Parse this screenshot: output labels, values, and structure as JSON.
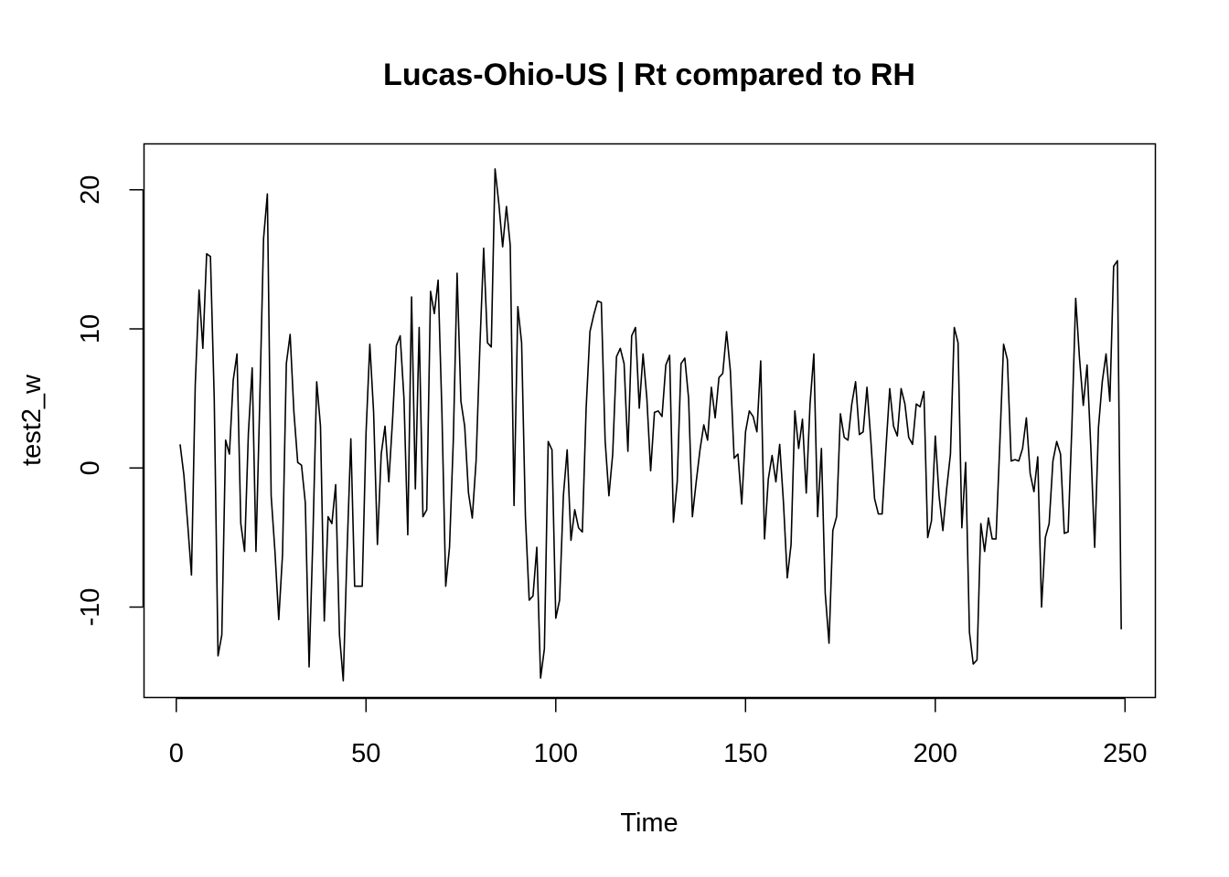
{
  "chart_data": {
    "type": "line",
    "title": "Lucas-Ohio-US | Rt compared to RH",
    "xlabel": "Time",
    "ylabel": "test2_w",
    "xlim": [
      -8.5,
      258
    ],
    "ylim": [
      -16.5,
      23.3
    ],
    "x_ticks": [
      0,
      50,
      100,
      150,
      200,
      250
    ],
    "x_tick_labels": [
      "0",
      "50",
      "100",
      "150",
      "200",
      "250"
    ],
    "y_ticks": [
      -10,
      0,
      10,
      20
    ],
    "y_tick_labels": [
      "-10",
      "0",
      "10",
      "20"
    ],
    "grid": false,
    "series": [
      {
        "color": "#000000",
        "x_start": 1,
        "x_step": 1,
        "values": [
          1.7,
          -0.5,
          -4.0,
          -7.7,
          6.0,
          12.8,
          8.6,
          15.4,
          15.2,
          5.0,
          -13.5,
          -12.0,
          2.0,
          1.0,
          6.3,
          8.2,
          -4.0,
          -6.0,
          2.5,
          7.2,
          -6.0,
          4.8,
          16.5,
          19.7,
          -2.0,
          -6.0,
          -10.9,
          -6.2,
          7.5,
          9.6,
          4.0,
          0.4,
          0.2,
          -2.5,
          -14.3,
          -5.0,
          6.2,
          3.0,
          -11.0,
          -3.5,
          -4.0,
          -1.2,
          -12.0,
          -15.3,
          -6.0,
          2.1,
          -8.5,
          -8.5,
          -8.5,
          2.5,
          8.9,
          4.0,
          -5.5,
          1.0,
          3.0,
          -1.0,
          3.5,
          8.8,
          9.5,
          5.0,
          -4.8,
          12.3,
          -1.5,
          10.1,
          -3.5,
          -3.0,
          12.7,
          11.1,
          13.5,
          4.0,
          -8.5,
          -5.7,
          2.0,
          14.0,
          4.8,
          3.0,
          -1.8,
          -3.6,
          0.5,
          8.7,
          15.8,
          9.0,
          8.7,
          21.5,
          19.0,
          15.9,
          18.8,
          16.0,
          -2.7,
          11.6,
          9.0,
          -3.5,
          -9.5,
          -9.2,
          -5.7,
          -15.1,
          -13.0,
          1.9,
          1.3,
          -10.8,
          -9.5,
          -2.0,
          1.3,
          -5.2,
          -3.0,
          -4.3,
          -4.6,
          4.3,
          9.8,
          11.0,
          12.0,
          11.9,
          2.0,
          -2.0,
          1.0,
          8.0,
          8.6,
          7.5,
          1.2,
          9.5,
          10.1,
          4.3,
          8.2,
          5.0,
          -0.2,
          4.0,
          4.1,
          3.7,
          7.4,
          8.1,
          -3.9,
          -1.0,
          7.5,
          7.9,
          5.0,
          -3.5,
          -1.0,
          1.3,
          3.1,
          2.0,
          5.8,
          3.6,
          6.5,
          6.8,
          9.8,
          7.0,
          0.7,
          1.0,
          -2.6,
          2.6,
          4.1,
          3.7,
          2.6,
          7.7,
          -5.1,
          -0.8,
          0.9,
          -1.0,
          1.7,
          -2.5,
          -7.9,
          -5.5,
          4.1,
          1.4,
          3.5,
          -1.8,
          4.6,
          8.2,
          -3.5,
          1.4,
          -9.0,
          -12.6,
          -4.5,
          -3.5,
          3.9,
          2.2,
          2.0,
          4.6,
          6.2,
          2.4,
          2.6,
          5.8,
          2.1,
          -2.2,
          -3.3,
          -3.3,
          1.4,
          5.7,
          3.0,
          2.3,
          5.7,
          4.6,
          2.2,
          1.7,
          4.6,
          4.4,
          5.5,
          -5.0,
          -3.8,
          2.3,
          -2.0,
          -4.5,
          -1.5,
          1.0,
          10.1,
          9.0,
          -4.3,
          0.4,
          -11.8,
          -14.1,
          -13.8,
          -4.0,
          -6.0,
          -3.6,
          -5.1,
          -5.1,
          1.7,
          8.9,
          7.8,
          0.5,
          0.6,
          0.5,
          1.4,
          3.6,
          -0.4,
          -1.7,
          0.8,
          -10.0,
          -5.0,
          -4.0,
          0.5,
          1.9,
          1.0,
          -4.7,
          -4.6,
          3.0,
          12.2,
          7.9,
          4.5,
          7.4,
          1.4,
          -5.7,
          2.9,
          6.2,
          8.2,
          4.8,
          14.5,
          14.9,
          -11.6
        ]
      }
    ]
  }
}
